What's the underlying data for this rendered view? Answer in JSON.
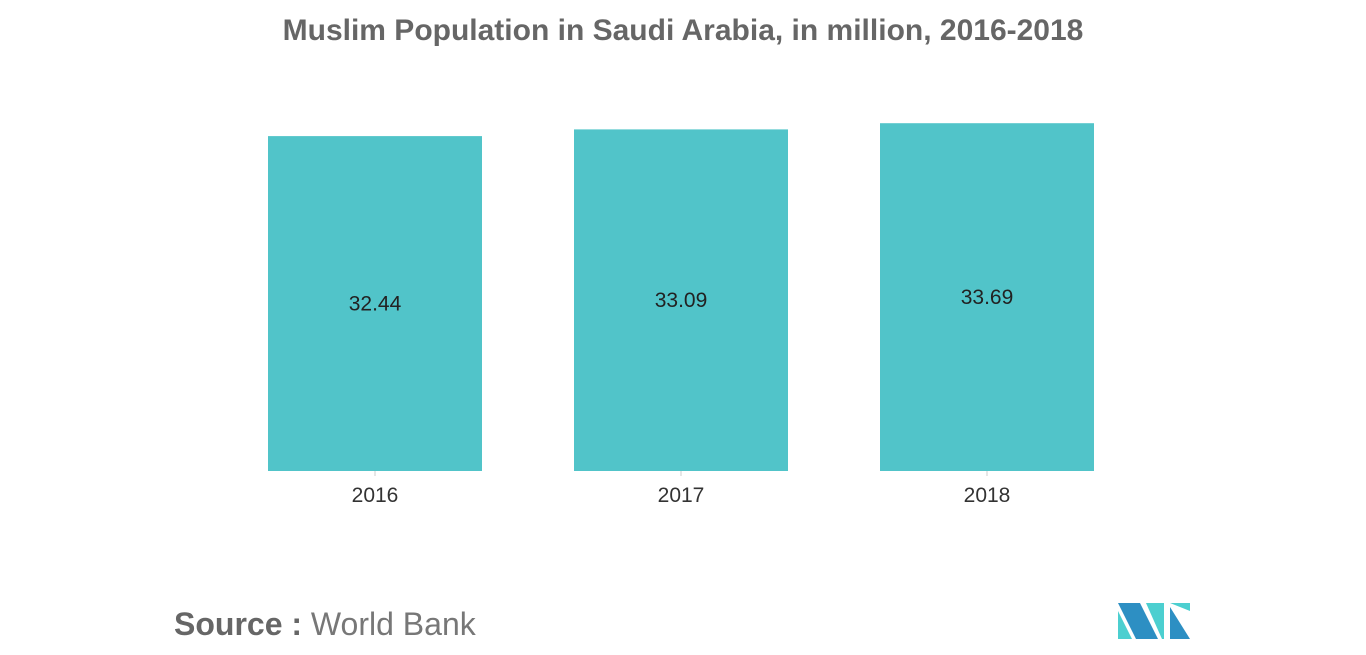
{
  "chart_data": {
    "type": "bar",
    "title": "Muslim Population in Saudi Arabia, in million, 2016-2018",
    "categories": [
      "2016",
      "2017",
      "2018"
    ],
    "values": [
      32.44,
      33.09,
      33.69
    ],
    "data_labels": [
      "32.44",
      "33.09",
      "33.69"
    ],
    "xlabel": "",
    "ylabel": "",
    "ylim": [
      0,
      34
    ],
    "grid": false,
    "bar_color": "#51c4c9"
  },
  "source": {
    "label": "Source :",
    "value": "World Bank"
  },
  "colors": {
    "logo_dark": "#2d8fc3",
    "logo_light": "#4ccfd0"
  }
}
